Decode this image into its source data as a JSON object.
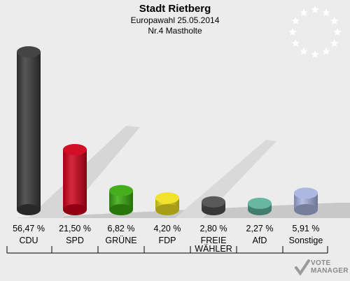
{
  "header": {
    "title": "Stadt Rietberg",
    "subtitle": "Europawahl 25.05.2014",
    "district": "Nr.4 Mastholte"
  },
  "logo": {
    "text": "VOTE",
    "subtext": "MANAGER",
    "icon": "eu-stars-icon"
  },
  "colors": {
    "background": "#ececec",
    "floor": "#c8c8c8"
  },
  "chart_data": {
    "type": "bar",
    "title": "Stadt Rietberg",
    "subtitle": "Europawahl 25.05.2014 / Nr.4 Mastholte",
    "categories": [
      "CDU",
      "SPD",
      "GRÜNE",
      "FDP",
      "FREIE WÄHLER",
      "AfD",
      "Sonstige"
    ],
    "category_lines": [
      [
        "CDU"
      ],
      [
        "SPD"
      ],
      [
        "GRÜNE"
      ],
      [
        "FDP"
      ],
      [
        "FREIE",
        "WÄHLER"
      ],
      [
        "AfD"
      ],
      [
        "Sonstige"
      ]
    ],
    "values": [
      56.47,
      21.5,
      6.82,
      4.2,
      2.8,
      2.27,
      5.91
    ],
    "value_labels": [
      "56,47 %",
      "21,50 %",
      "6,82 %",
      "4,20 %",
      "2,80 %",
      "2,27 %",
      "5,91 %"
    ],
    "colors": [
      "#3a3a3a",
      "#d0021b",
      "#3aaa10",
      "#f0e020",
      "#505050",
      "#5fb39c",
      "#a8b4e0"
    ],
    "unit": "%",
    "ylim": [
      0,
      60
    ],
    "grid": false,
    "legend": "none"
  }
}
